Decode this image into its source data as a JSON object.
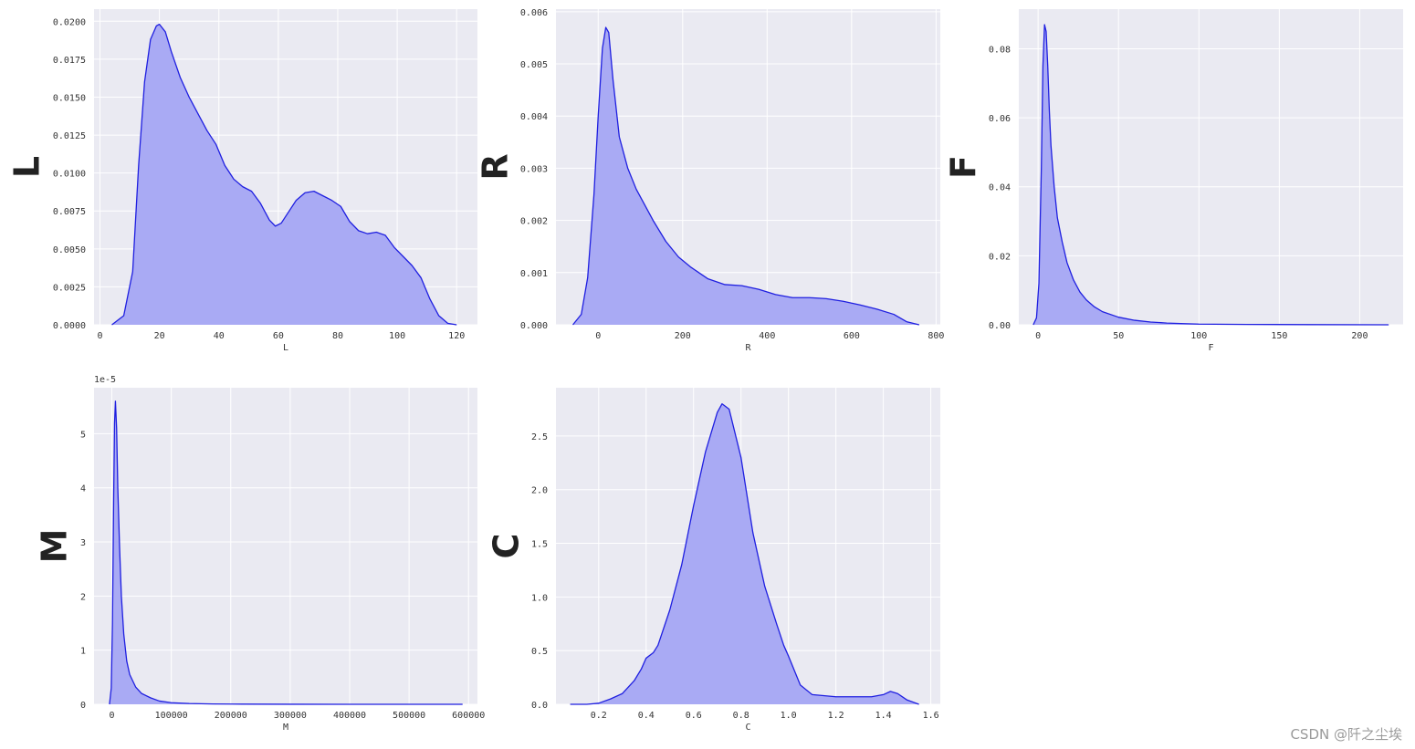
{
  "watermark": "CSDN @阡之尘埃",
  "colors": {
    "panel_bg": "#eaeaf2",
    "grid": "#ffffff",
    "line": "#1f1fe0",
    "fill": "#a9aaf4"
  },
  "chart_data": [
    {
      "type": "area",
      "ylabel": "L",
      "xlabel": "L",
      "xlim": [
        -2,
        127
      ],
      "ylim": [
        0,
        0.0208
      ],
      "xticks": [
        0,
        20,
        40,
        60,
        80,
        100,
        120
      ],
      "xtick_labels": [
        "0",
        "20",
        "40",
        "60",
        "80",
        "100",
        "120"
      ],
      "yticks": [
        0,
        0.0025,
        0.005,
        0.0075,
        0.01,
        0.0125,
        0.015,
        0.0175,
        0.02
      ],
      "ytick_labels": [
        "0.0000",
        "0.0025",
        "0.0050",
        "0.0075",
        "0.0100",
        "0.0125",
        "0.0150",
        "0.0175",
        "0.0200"
      ],
      "x": [
        4,
        8,
        11,
        13,
        15,
        17,
        19,
        20,
        22,
        24,
        27,
        30,
        33,
        36,
        39,
        42,
        45,
        48,
        51,
        54,
        57,
        59,
        61,
        63,
        66,
        69,
        72,
        75,
        78,
        81,
        84,
        87,
        90,
        93,
        96,
        99,
        102,
        105,
        108,
        111,
        114,
        117,
        120
      ],
      "y": [
        0.0,
        0.0006,
        0.0035,
        0.0105,
        0.016,
        0.0188,
        0.0197,
        0.0198,
        0.0193,
        0.018,
        0.0163,
        0.015,
        0.0139,
        0.0128,
        0.0119,
        0.0105,
        0.0096,
        0.0091,
        0.0088,
        0.008,
        0.0069,
        0.0065,
        0.0067,
        0.0073,
        0.0082,
        0.0087,
        0.0088,
        0.0085,
        0.0082,
        0.0078,
        0.0068,
        0.0062,
        0.006,
        0.0061,
        0.0059,
        0.0051,
        0.0045,
        0.0039,
        0.0031,
        0.0017,
        0.0006,
        0.0001,
        0.0
      ]
    },
    {
      "type": "area",
      "ylabel": "R",
      "xlabel": "R",
      "xlim": [
        -100,
        810
      ],
      "ylim": [
        0,
        0.00605
      ],
      "xticks": [
        0,
        200,
        400,
        600,
        800
      ],
      "xtick_labels": [
        "0",
        "200",
        "400",
        "600",
        "800"
      ],
      "yticks": [
        0,
        0.001,
        0.002,
        0.003,
        0.004,
        0.005,
        0.006
      ],
      "ytick_labels": [
        "0.000",
        "0.001",
        "0.002",
        "0.003",
        "0.004",
        "0.005",
        "0.006"
      ],
      "x": [
        -60,
        -40,
        -25,
        -10,
        0,
        10,
        18,
        25,
        35,
        50,
        70,
        90,
        110,
        130,
        160,
        190,
        220,
        260,
        300,
        340,
        380,
        420,
        460,
        500,
        540,
        580,
        620,
        660,
        700,
        730,
        760
      ],
      "y": [
        0.0,
        0.0002,
        0.0009,
        0.0025,
        0.004,
        0.0053,
        0.0057,
        0.0056,
        0.0047,
        0.0036,
        0.003,
        0.0026,
        0.0023,
        0.002,
        0.0016,
        0.0013,
        0.0011,
        0.00088,
        0.00077,
        0.00075,
        0.00068,
        0.00058,
        0.00052,
        0.00052,
        0.0005,
        0.00045,
        0.00038,
        0.0003,
        0.0002,
        6e-05,
        0.0
      ]
    },
    {
      "type": "area",
      "ylabel": "F",
      "xlabel": "F",
      "xlim": [
        -12,
        227
      ],
      "ylim": [
        0,
        0.0915
      ],
      "xticks": [
        0,
        50,
        100,
        150,
        200
      ],
      "xtick_labels": [
        "0",
        "50",
        "100",
        "150",
        "200"
      ],
      "yticks": [
        0,
        0.02,
        0.04,
        0.06,
        0.08
      ],
      "ytick_labels": [
        "0.00",
        "0.02",
        "0.04",
        "0.06",
        "0.08"
      ],
      "x": [
        -3,
        -1,
        0.5,
        2,
        3,
        4,
        5,
        6,
        7,
        8,
        10,
        12,
        15,
        18,
        22,
        26,
        30,
        35,
        40,
        50,
        60,
        70,
        80,
        100,
        130,
        170,
        218
      ],
      "y": [
        0.0,
        0.002,
        0.012,
        0.045,
        0.075,
        0.087,
        0.085,
        0.075,
        0.062,
        0.052,
        0.04,
        0.031,
        0.024,
        0.018,
        0.013,
        0.0095,
        0.0072,
        0.0052,
        0.0038,
        0.0022,
        0.0013,
        0.0008,
        0.0005,
        0.0002,
        0.0001,
        5e-05,
        0.0
      ]
    },
    {
      "type": "area",
      "ylabel": "M",
      "xlabel": "M",
      "offset_text": "1e-5",
      "xlim": [
        -30000,
        615000
      ],
      "ylim": [
        0,
        5.85
      ],
      "xticks": [
        0,
        100000,
        200000,
        300000,
        400000,
        500000,
        600000
      ],
      "xtick_labels": [
        "0",
        "100000",
        "200000",
        "300000",
        "400000",
        "500000",
        "600000"
      ],
      "yticks": [
        0,
        1,
        2,
        3,
        4,
        5
      ],
      "ytick_labels": [
        "0",
        "1",
        "2",
        "3",
        "4",
        "5"
      ],
      "x": [
        -4000,
        -1000,
        1000,
        3000,
        4500,
        6000,
        8000,
        10000,
        13000,
        16000,
        20000,
        25000,
        30000,
        40000,
        50000,
        65000,
        80000,
        100000,
        130000,
        170000,
        220000,
        300000,
        400000,
        500000,
        590000
      ],
      "y": [
        0.0,
        0.3,
        1.5,
        3.8,
        5.2,
        5.6,
        5.1,
        4.0,
        2.9,
        2.0,
        1.3,
        0.8,
        0.55,
        0.32,
        0.2,
        0.12,
        0.06,
        0.03,
        0.015,
        0.006,
        0.003,
        0.001,
        0.0005,
        0.0002,
        0.0
      ]
    },
    {
      "type": "area",
      "ylabel": "C",
      "xlabel": "C",
      "xlim": [
        0.02,
        1.64
      ],
      "ylim": [
        0,
        2.95
      ],
      "xticks": [
        0.2,
        0.4,
        0.6,
        0.8,
        1.0,
        1.2,
        1.4,
        1.6
      ],
      "xtick_labels": [
        "0.2",
        "0.4",
        "0.6",
        "0.8",
        "1.0",
        "1.2",
        "1.4",
        "1.6"
      ],
      "yticks": [
        0,
        0.5,
        1.0,
        1.5,
        2.0,
        2.5
      ],
      "ytick_labels": [
        "0.0",
        "0.5",
        "1.0",
        "1.5",
        "2.0",
        "2.5"
      ],
      "x": [
        0.08,
        0.15,
        0.2,
        0.25,
        0.3,
        0.35,
        0.38,
        0.4,
        0.43,
        0.45,
        0.5,
        0.55,
        0.6,
        0.65,
        0.7,
        0.72,
        0.75,
        0.8,
        0.85,
        0.9,
        0.95,
        0.98,
        1.0,
        1.05,
        1.1,
        1.2,
        1.3,
        1.35,
        1.4,
        1.43,
        1.46,
        1.5,
        1.55
      ],
      "y": [
        0.0,
        0.0,
        0.01,
        0.05,
        0.1,
        0.22,
        0.33,
        0.43,
        0.48,
        0.55,
        0.88,
        1.3,
        1.85,
        2.35,
        2.72,
        2.8,
        2.75,
        2.3,
        1.6,
        1.1,
        0.75,
        0.55,
        0.45,
        0.18,
        0.09,
        0.07,
        0.07,
        0.07,
        0.09,
        0.12,
        0.1,
        0.04,
        0.0
      ]
    }
  ]
}
